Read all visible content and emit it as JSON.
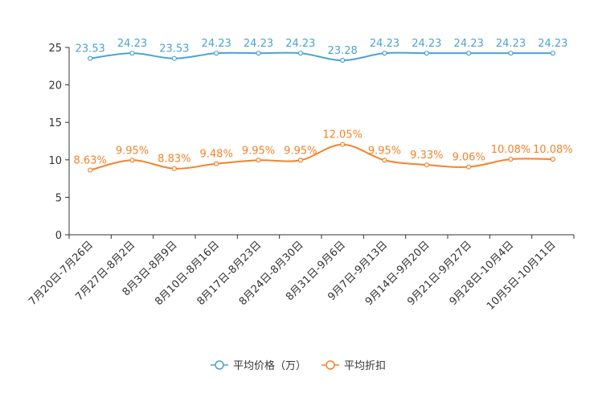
{
  "chart_data": {
    "type": "line",
    "title": "",
    "xlabel": "",
    "ylabel": "",
    "ylim": [
      0,
      25
    ],
    "yticks": [
      0,
      5,
      10,
      15,
      20,
      25
    ],
    "grid": false,
    "legend_position": "bottom-center",
    "categories": [
      "7月20日-7月26日",
      "7月27日-8月2日",
      "8月3日-8月9日",
      "8月10日-8月16日",
      "8月17日-8月23日",
      "8月24日-8月30日",
      "8月31日-9月6日",
      "9月7日-9月13日",
      "9月14日-9月20日",
      "9月21日-9月27日",
      "9月28日-10月4日",
      "10月5日-10月11日"
    ],
    "series": [
      {
        "name": "平均价格（万）",
        "color": "#4ba3d3",
        "values": [
          23.53,
          24.23,
          23.53,
          24.23,
          24.23,
          24.23,
          23.28,
          24.23,
          24.23,
          24.23,
          24.23,
          24.23
        ],
        "labels": [
          "23.53",
          "24.23",
          "23.53",
          "24.23",
          "24.23",
          "24.23",
          "23.28",
          "24.23",
          "24.23",
          "24.23",
          "24.23",
          "24.23"
        ]
      },
      {
        "name": "平均折扣",
        "color": "#f5822a",
        "values": [
          8.63,
          9.95,
          8.83,
          9.48,
          9.95,
          9.95,
          12.05,
          9.95,
          9.33,
          9.06,
          10.08,
          10.08
        ],
        "labels": [
          "8.63%",
          "9.95%",
          "8.83%",
          "9.48%",
          "9.95%",
          "9.95%",
          "12.05%",
          "9.95%",
          "9.33%",
          "9.06%",
          "10.08%",
          "10.08%"
        ]
      }
    ]
  }
}
